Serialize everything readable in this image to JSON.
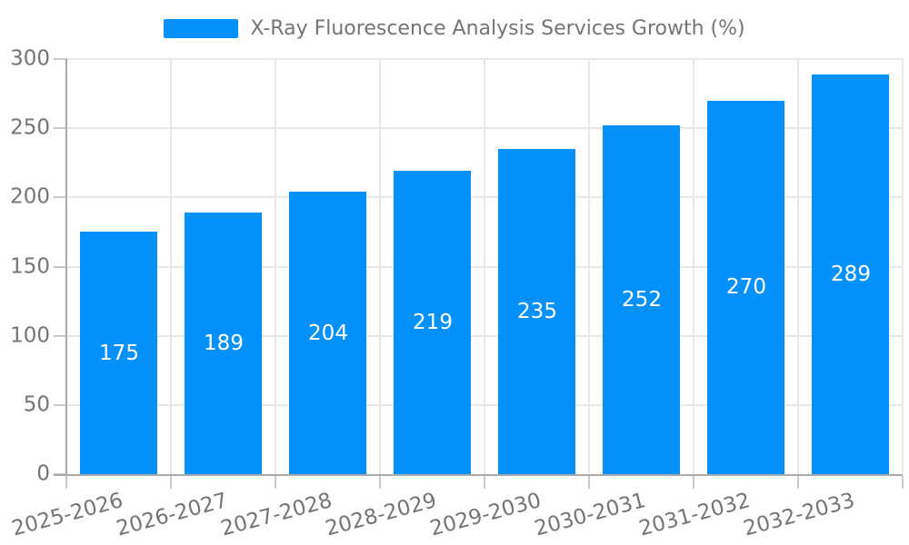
{
  "chart_data": {
    "type": "bar",
    "title": "X-Ray Fluorescence Analysis Services Growth (%)",
    "categories": [
      "2025-2026",
      "2026-2027",
      "2027-2028",
      "2028-2029",
      "2029-2030",
      "2030-2031",
      "2031-2032",
      "2032-2033"
    ],
    "values": [
      175,
      189,
      204,
      219,
      235,
      252,
      270,
      289
    ],
    "yticks": [
      "0",
      "50",
      "100",
      "150",
      "200",
      "250",
      "300"
    ],
    "ytick_step": 50,
    "ylim": [
      0,
      300
    ],
    "xlabel": "",
    "ylabel": "",
    "grid": true,
    "legend_position": "top",
    "bar_color": "#0591fb",
    "value_label_color": "#ffffff",
    "axis_text_color": "#757575",
    "axis_line_color": "#aaaaaa",
    "grid_line_color": "#e7e7e7",
    "tick_mark_color": "#c9c9c9"
  }
}
